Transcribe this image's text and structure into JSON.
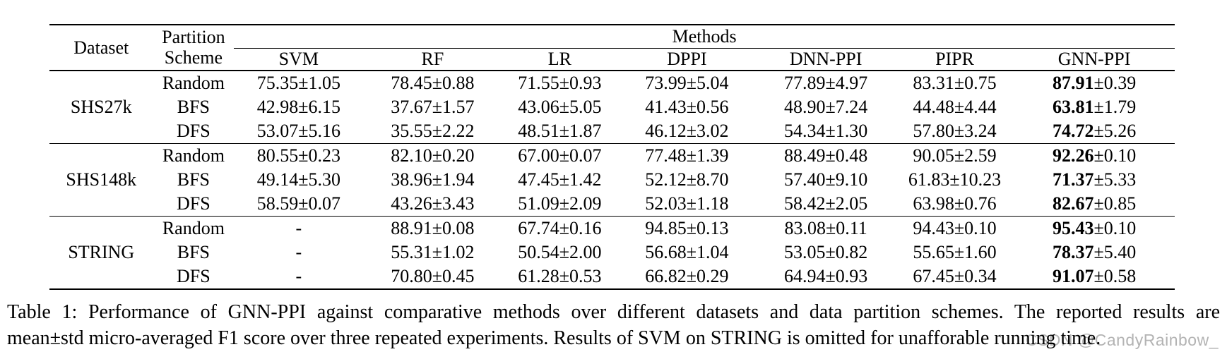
{
  "table": {
    "header": {
      "dataset": "Dataset",
      "partition_line1": "Partition",
      "partition_line2": "Scheme",
      "methods_group": "Methods",
      "methods": [
        "SVM",
        "RF",
        "LR",
        "DPPI",
        "DNN-PPI",
        "PIPR",
        "GNN-PPI"
      ]
    },
    "bold_column_index": 6,
    "groups": [
      {
        "dataset": "SHS27k",
        "rows": [
          {
            "scheme": "Random",
            "values": [
              "75.35±1.05",
              "78.45±0.88",
              "71.55±0.93",
              "73.99±5.04",
              "77.89±4.97",
              "83.31±0.75",
              "87.91±0.39"
            ]
          },
          {
            "scheme": "BFS",
            "values": [
              "42.98±6.15",
              "37.67±1.57",
              "43.06±5.05",
              "41.43±0.56",
              "48.90±7.24",
              "44.48±4.44",
              "63.81±1.79"
            ]
          },
          {
            "scheme": "DFS",
            "values": [
              "53.07±5.16",
              "35.55±2.22",
              "48.51±1.87",
              "46.12±3.02",
              "54.34±1.30",
              "57.80±3.24",
              "74.72±5.26"
            ]
          }
        ]
      },
      {
        "dataset": "SHS148k",
        "rows": [
          {
            "scheme": "Random",
            "values": [
              "80.55±0.23",
              "82.10±0.20",
              "67.00±0.07",
              "77.48±1.39",
              "88.49±0.48",
              "90.05±2.59",
              "92.26±0.10"
            ]
          },
          {
            "scheme": "BFS",
            "values": [
              "49.14±5.30",
              "38.96±1.94",
              "47.45±1.42",
              "52.12±8.70",
              "57.40±9.10",
              "61.83±10.23",
              "71.37±5.33"
            ]
          },
          {
            "scheme": "DFS",
            "values": [
              "58.59±0.07",
              "43.26±3.43",
              "51.09±2.09",
              "52.03±1.18",
              "58.42±2.05",
              "63.98±0.76",
              "82.67±0.85"
            ]
          }
        ]
      },
      {
        "dataset": "STRING",
        "rows": [
          {
            "scheme": "Random",
            "values": [
              "-",
              "88.91±0.08",
              "67.74±0.16",
              "94.85±0.13",
              "83.08±0.11",
              "94.43±0.10",
              "95.43±0.10"
            ]
          },
          {
            "scheme": "BFS",
            "values": [
              "-",
              "55.31±1.02",
              "50.54±2.00",
              "56.68±1.04",
              "53.05±0.82",
              "55.65±1.60",
              "78.37±5.40"
            ]
          },
          {
            "scheme": "DFS",
            "values": [
              "-",
              "70.80±0.45",
              "61.28±0.53",
              "66.82±0.29",
              "64.94±0.93",
              "67.45±0.34",
              "91.07±0.58"
            ]
          }
        ]
      }
    ]
  },
  "caption": {
    "line1": "Table 1: Performance of GNN-PPI against comparative methods over different datasets and data partition schemes. The reported results are",
    "line2": "mean±std micro-averaged F1 score over three repeated experiments. Results of SVM on STRING is omitted for unafforable running time."
  },
  "watermark": {
    "text": "CSDN @CandyRainbow_"
  },
  "colors": {
    "text": "#000000",
    "rule": "#000000",
    "watermark": "#b3b3b3",
    "background": "#ffffff"
  }
}
